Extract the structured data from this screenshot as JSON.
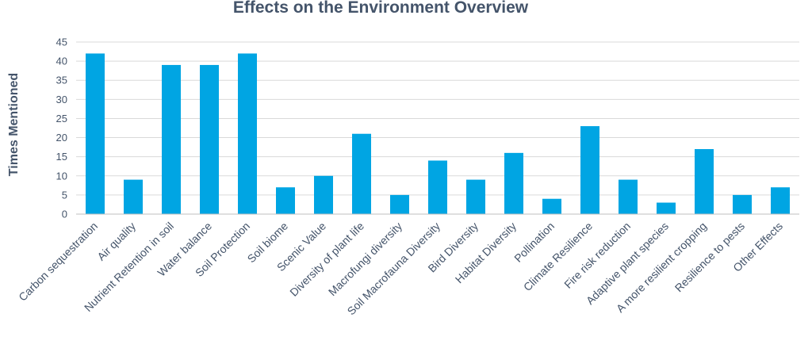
{
  "chart_data": {
    "type": "bar",
    "title": "Effects on the Environment Overview",
    "xlabel": "",
    "ylabel": "Times Mentioned",
    "ylim": [
      0,
      45
    ],
    "yticks": [
      0,
      5,
      10,
      15,
      20,
      25,
      30,
      35,
      40,
      45
    ],
    "grid": true,
    "legend": "none",
    "bar_color": "#00a5e3",
    "categories": [
      "Carbon sequestration",
      "Air quality",
      "Nutrient Retention in soil",
      "Water balance",
      "Soil Protection",
      "Soil biome",
      "Scenic Value",
      "Diversity of plant life",
      "Macrofungi diversity",
      "Soil Macrofauna Diversity",
      "Bird Diversity",
      "Habitat Diversity",
      "Pollination",
      "Climate Resilience",
      "Fire risk reduction",
      "Adaptive plant species",
      "A more resilient cropping",
      "Resilience to pests",
      "Other Effects"
    ],
    "values": [
      42,
      9,
      39,
      39,
      42,
      7,
      10,
      21,
      5,
      14,
      9,
      16,
      4,
      23,
      9,
      3,
      17,
      5,
      7
    ]
  }
}
